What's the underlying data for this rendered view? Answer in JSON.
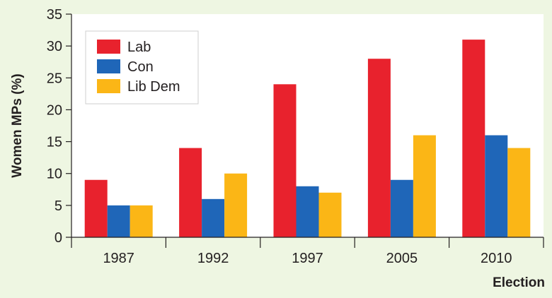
{
  "chart_data": {
    "type": "bar",
    "categories": [
      "1987",
      "1992",
      "1997",
      "2005",
      "2010"
    ],
    "series": [
      {
        "name": "Lab",
        "values": [
          9,
          14,
          24,
          28,
          31
        ],
        "color": "#e8222d"
      },
      {
        "name": "Con",
        "values": [
          5,
          6,
          8,
          9,
          16
        ],
        "color": "#1f66b8"
      },
      {
        "name": "Lib Dem",
        "values": [
          5,
          10,
          7,
          16,
          14
        ],
        "color": "#fbb616"
      }
    ],
    "ylim": [
      0,
      35
    ],
    "yticks": [
      0,
      5,
      10,
      15,
      20,
      25,
      30,
      35
    ],
    "xlabel": "Election",
    "ylabel": "Women MPs (%)",
    "legend": "top-left",
    "grid": false,
    "colors": {
      "background": "#eef6e2",
      "plot_background": "#ffffff",
      "axis": "#231f20"
    }
  }
}
